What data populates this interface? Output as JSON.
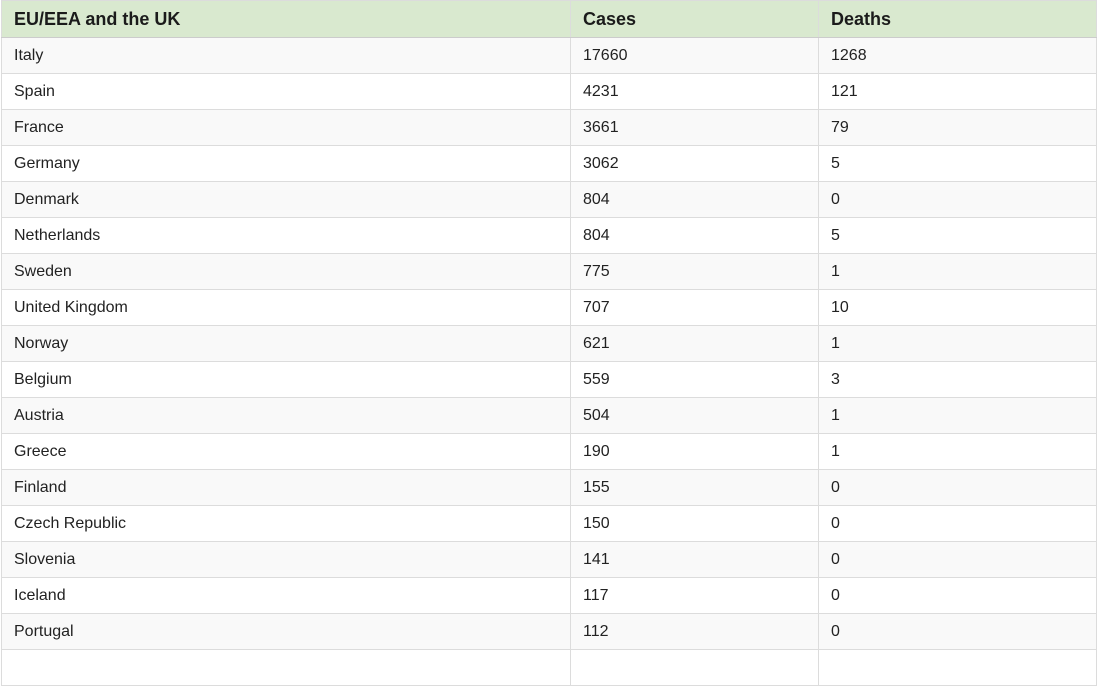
{
  "table": {
    "headers": {
      "region": "EU/EEA and the UK",
      "cases": "Cases",
      "deaths": "Deaths"
    },
    "rows": [
      {
        "country": "Italy",
        "cases": "17660",
        "deaths": "1268"
      },
      {
        "country": "Spain",
        "cases": "4231",
        "deaths": "121"
      },
      {
        "country": "France",
        "cases": "3661",
        "deaths": "79"
      },
      {
        "country": "Germany",
        "cases": "3062",
        "deaths": "5"
      },
      {
        "country": "Denmark",
        "cases": "804",
        "deaths": "0"
      },
      {
        "country": "Netherlands",
        "cases": "804",
        "deaths": "5"
      },
      {
        "country": "Sweden",
        "cases": "775",
        "deaths": "1"
      },
      {
        "country": "United Kingdom",
        "cases": "707",
        "deaths": "10"
      },
      {
        "country": "Norway",
        "cases": "621",
        "deaths": "1"
      },
      {
        "country": "Belgium",
        "cases": "559",
        "deaths": "3"
      },
      {
        "country": "Austria",
        "cases": "504",
        "deaths": "1"
      },
      {
        "country": "Greece",
        "cases": "190",
        "deaths": "1"
      },
      {
        "country": "Finland",
        "cases": "155",
        "deaths": "0"
      },
      {
        "country": "Czech Republic",
        "cases": "150",
        "deaths": "0"
      },
      {
        "country": "Slovenia",
        "cases": "141",
        "deaths": "0"
      },
      {
        "country": "Iceland",
        "cases": "117",
        "deaths": "0"
      },
      {
        "country": "Portugal",
        "cases": "112",
        "deaths": "0"
      }
    ]
  },
  "colors": {
    "header_bg": "#d9e9cf",
    "stripe_bg": "#f9f9f9",
    "row_bg": "#ffffff",
    "border": "#dcdcdc",
    "text": "#222222"
  },
  "chart_data": {
    "type": "table",
    "title": "EU/EEA and the UK",
    "columns": [
      "EU/EEA and the UK",
      "Cases",
      "Deaths"
    ],
    "rows": [
      [
        "Italy",
        17660,
        1268
      ],
      [
        "Spain",
        4231,
        121
      ],
      [
        "France",
        3661,
        79
      ],
      [
        "Germany",
        3062,
        5
      ],
      [
        "Denmark",
        804,
        0
      ],
      [
        "Netherlands",
        804,
        5
      ],
      [
        "Sweden",
        775,
        1
      ],
      [
        "United Kingdom",
        707,
        10
      ],
      [
        "Norway",
        621,
        1
      ],
      [
        "Belgium",
        559,
        3
      ],
      [
        "Austria",
        504,
        1
      ],
      [
        "Greece",
        190,
        1
      ],
      [
        "Finland",
        155,
        0
      ],
      [
        "Czech Republic",
        150,
        0
      ],
      [
        "Slovenia",
        141,
        0
      ],
      [
        "Iceland",
        117,
        0
      ],
      [
        "Portugal",
        112,
        0
      ]
    ],
    "layout_hints": {
      "striped_rows": true,
      "header_background": "#d9e9cf",
      "grid": true,
      "bottom_row_cut_off": true
    }
  }
}
